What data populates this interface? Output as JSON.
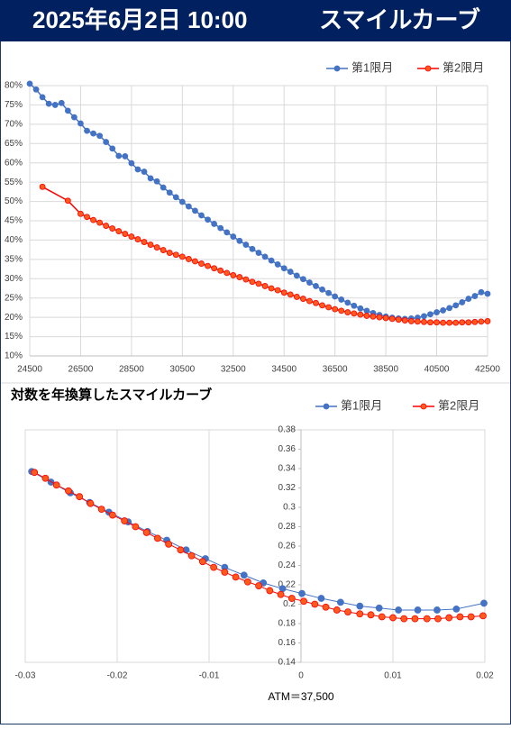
{
  "header": {
    "date": "2025年6月2日 10:00",
    "title": "スマイルカーブ"
  },
  "chart_data": [
    {
      "type": "line",
      "legend": "top-right",
      "grid": true,
      "xlim": [
        24500,
        42500
      ],
      "xticks": [
        24500,
        26500,
        28500,
        30500,
        32500,
        34500,
        36500,
        38500,
        40500,
        42500
      ],
      "ylim": [
        10,
        80
      ],
      "yticks": [
        {
          "value": 10,
          "label": "10%"
        },
        {
          "value": 15,
          "label": "15%"
        },
        {
          "value": 20,
          "label": "20%"
        },
        {
          "value": 25,
          "label": "25%"
        },
        {
          "value": 30,
          "label": "30%"
        },
        {
          "value": 35,
          "label": "35%"
        },
        {
          "value": 40,
          "label": "40%"
        },
        {
          "value": 45,
          "label": "45%"
        },
        {
          "value": 50,
          "label": "50%"
        },
        {
          "value": 55,
          "label": "55%"
        },
        {
          "value": 60,
          "label": "60%"
        },
        {
          "value": 65,
          "label": "65%"
        },
        {
          "value": 70,
          "label": "70%"
        },
        {
          "value": 75,
          "label": "75%"
        },
        {
          "value": 80,
          "label": "80%"
        }
      ],
      "series": [
        {
          "name": "第1限月",
          "color": "#4472c4",
          "marker_color": "#4472c4",
          "x": [
            24500,
            24750,
            25000,
            25250,
            25500,
            25750,
            26000,
            26250,
            26500,
            26750,
            27000,
            27250,
            27500,
            27750,
            28000,
            28250,
            28500,
            28750,
            29000,
            29250,
            29500,
            29750,
            30000,
            30250,
            30500,
            30750,
            31000,
            31250,
            31500,
            31750,
            32000,
            32250,
            32500,
            32750,
            33000,
            33250,
            33500,
            33750,
            34000,
            34250,
            34500,
            34750,
            35000,
            35250,
            35500,
            35750,
            36000,
            36250,
            36500,
            36750,
            37000,
            37250,
            37500,
            37750,
            38000,
            38250,
            38500,
            38750,
            39000,
            39250,
            39500,
            39750,
            40000,
            40250,
            40500,
            40750,
            41000,
            41250,
            41500,
            41750,
            42000,
            42250,
            42500
          ],
          "values": [
            80.5,
            79,
            77,
            75.3,
            75.0,
            75.5,
            73.5,
            71.8,
            70.2,
            68.3,
            67.6,
            67.0,
            65.4,
            63.7,
            61.8,
            61.7,
            59.9,
            58.3,
            57.7,
            56.0,
            55.2,
            53.6,
            52.3,
            51.1,
            49.9,
            48.7,
            47.6,
            46.4,
            45.3,
            44.2,
            43.1,
            42.0,
            40.9,
            39.8,
            38.8,
            37.7,
            36.7,
            35.7,
            34.7,
            33.7,
            32.7,
            31.8,
            30.8,
            29.9,
            29.0,
            28.1,
            27.2,
            26.3,
            25.4,
            24.6,
            23.8,
            23.0,
            22.3,
            21.7,
            21.1,
            20.6,
            20.2,
            19.9,
            19.7,
            19.6,
            19.7,
            19.9,
            20.3,
            20.8,
            21.3,
            21.8,
            22.4,
            23.1,
            23.9,
            24.8,
            25.5,
            26.5,
            26.1
          ]
        },
        {
          "name": "第2限月",
          "color": "#ff0000",
          "marker_color": "#ff5a1e",
          "x": [
            25000,
            26000,
            26500,
            26750,
            27000,
            27250,
            27500,
            27750,
            28000,
            28250,
            28500,
            28750,
            29000,
            29250,
            29500,
            29750,
            30000,
            30250,
            30500,
            30750,
            31000,
            31250,
            31500,
            31750,
            32000,
            32250,
            32500,
            32750,
            33000,
            33250,
            33500,
            33750,
            34000,
            34250,
            34500,
            34750,
            35000,
            35250,
            35500,
            35750,
            36000,
            36250,
            36500,
            36750,
            37000,
            37250,
            37500,
            37750,
            38000,
            38250,
            38500,
            38750,
            39000,
            39250,
            39500,
            39750,
            40000,
            40250,
            40500,
            40750,
            41000,
            41250,
            41500,
            41750,
            42000,
            42250,
            42500
          ],
          "values": [
            53.8,
            50.2,
            46.8,
            46.0,
            45.2,
            44.5,
            43.7,
            43.0,
            42.3,
            41.6,
            40.9,
            40.2,
            39.5,
            38.8,
            38.1,
            37.4,
            36.7,
            36.2,
            35.7,
            35.1,
            34.5,
            33.9,
            33.3,
            32.7,
            32.1,
            31.5,
            30.9,
            30.4,
            29.8,
            29.2,
            28.7,
            28.1,
            27.5,
            27.0,
            26.4,
            25.9,
            25.3,
            24.8,
            24.2,
            23.7,
            23.1,
            22.6,
            22.1,
            21.7,
            21.3,
            21.0,
            20.7,
            20.4,
            20.2,
            20.0,
            19.8,
            19.6,
            19.4,
            19.2,
            19.0,
            18.9,
            18.8,
            18.7,
            18.7,
            18.6,
            18.6,
            18.6,
            18.7,
            18.7,
            18.8,
            18.9,
            19.0
          ]
        }
      ]
    },
    {
      "type": "line",
      "title": "対数を年換算したスマイルカーブ",
      "x_label": "ATM＝37,500",
      "legend": "top-right",
      "grid": true,
      "xlim": [
        -0.03,
        0.02
      ],
      "xticks": [
        -0.03,
        -0.02,
        -0.01,
        0,
        0.01,
        0.02
      ],
      "ylim": [
        0.14,
        0.38
      ],
      "yticks": [
        0.14,
        0.16,
        0.18,
        0.2,
        0.22,
        0.24,
        0.26,
        0.28,
        0.3,
        0.32,
        0.34,
        0.36,
        0.38
      ],
      "series": [
        {
          "name": "第1限月",
          "color": "#4472c4",
          "marker_color": "#4472c4",
          "x": [
            -0.0293,
            -0.0272,
            -0.0251,
            -0.023,
            -0.0209,
            -0.0188,
            -0.0167,
            -0.0146,
            -0.0125,
            -0.0104,
            -0.0083,
            -0.0062,
            -0.0041,
            -0.002,
            0.0001,
            0.0022,
            0.0043,
            0.0064,
            0.0085,
            0.0106,
            0.0127,
            0.0148,
            0.0169,
            0.0199
          ],
          "values": [
            0.337,
            0.326,
            0.315,
            0.305,
            0.295,
            0.285,
            0.275,
            0.266,
            0.256,
            0.247,
            0.238,
            0.23,
            0.222,
            0.216,
            0.211,
            0.206,
            0.202,
            0.198,
            0.196,
            0.194,
            0.194,
            0.194,
            0.195,
            0.201
          ]
        },
        {
          "name": "第2限月",
          "color": "#ff0000",
          "marker_color": "#ff5a1e",
          "x": [
            -0.029,
            -0.0278,
            -0.0266,
            -0.0253,
            -0.0241,
            -0.0229,
            -0.0217,
            -0.0205,
            -0.0192,
            -0.018,
            -0.0168,
            -0.0156,
            -0.0144,
            -0.0131,
            -0.0119,
            -0.0107,
            -0.0095,
            -0.0083,
            -0.0071,
            -0.0058,
            -0.0046,
            -0.0034,
            -0.0022,
            -0.001,
            0.0003,
            0.0015,
            0.0027,
            0.0039,
            0.0051,
            0.0064,
            0.0076,
            0.0088,
            0.01,
            0.0112,
            0.0124,
            0.0137,
            0.0149,
            0.0161,
            0.0173,
            0.0185,
            0.0198
          ],
          "values": [
            0.336,
            0.33,
            0.323,
            0.317,
            0.311,
            0.304,
            0.298,
            0.292,
            0.286,
            0.28,
            0.274,
            0.268,
            0.262,
            0.256,
            0.25,
            0.244,
            0.238,
            0.233,
            0.228,
            0.223,
            0.219,
            0.214,
            0.21,
            0.206,
            0.203,
            0.2,
            0.197,
            0.194,
            0.192,
            0.19,
            0.189,
            0.187,
            0.186,
            0.185,
            0.185,
            0.185,
            0.185,
            0.186,
            0.187,
            0.187,
            0.188
          ]
        }
      ]
    }
  ]
}
